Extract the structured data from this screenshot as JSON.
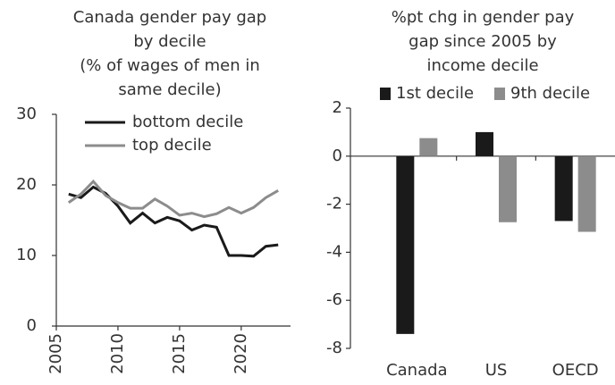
{
  "chart_data": [
    {
      "type": "line",
      "title": [
        "Canada gender pay gap",
        "by decile",
        "(% of wages of men in",
        "same decile)"
      ],
      "x": [
        2006,
        2007,
        2008,
        2009,
        2010,
        2011,
        2012,
        2013,
        2014,
        2015,
        2016,
        2017,
        2018,
        2019,
        2020,
        2021,
        2022,
        2023
      ],
      "series": [
        {
          "name": "bottom decile",
          "color": "#1a1a1a",
          "values": [
            18.7,
            18.2,
            19.7,
            18.8,
            17.0,
            14.6,
            16.0,
            14.6,
            15.4,
            14.9,
            13.6,
            14.3,
            14.0,
            10.0,
            10.0,
            9.9,
            11.3,
            11.5
          ]
        },
        {
          "name": "top decile",
          "color": "#8c8c8c",
          "values": [
            17.5,
            18.7,
            20.5,
            18.5,
            17.5,
            16.7,
            16.7,
            18.0,
            17.0,
            15.7,
            16.0,
            15.5,
            15.9,
            16.8,
            16.0,
            16.8,
            18.2,
            19.2
          ]
        }
      ],
      "xlim": [
        2005,
        2024
      ],
      "xticks": [
        2005,
        2010,
        2015,
        2020
      ],
      "ylim": [
        0,
        30
      ],
      "yticks": [
        0,
        10,
        20,
        30
      ],
      "legend": "upper right"
    },
    {
      "type": "bar",
      "title": [
        "%pt chg in gender pay",
        "gap since 2005 by",
        "income decile"
      ],
      "categories": [
        "Canada",
        "US",
        "OECD"
      ],
      "series": [
        {
          "name": "1st decile",
          "color": "#1a1a1a",
          "values": [
            -7.4,
            1.0,
            -2.7
          ]
        },
        {
          "name": "9th decile",
          "color": "#8c8c8c",
          "values": [
            0.75,
            -2.75,
            -3.15
          ]
        }
      ],
      "ylim": [
        -8,
        2
      ],
      "yticks": [
        -8,
        -6,
        -4,
        -2,
        0,
        2
      ],
      "legend": "top"
    }
  ]
}
